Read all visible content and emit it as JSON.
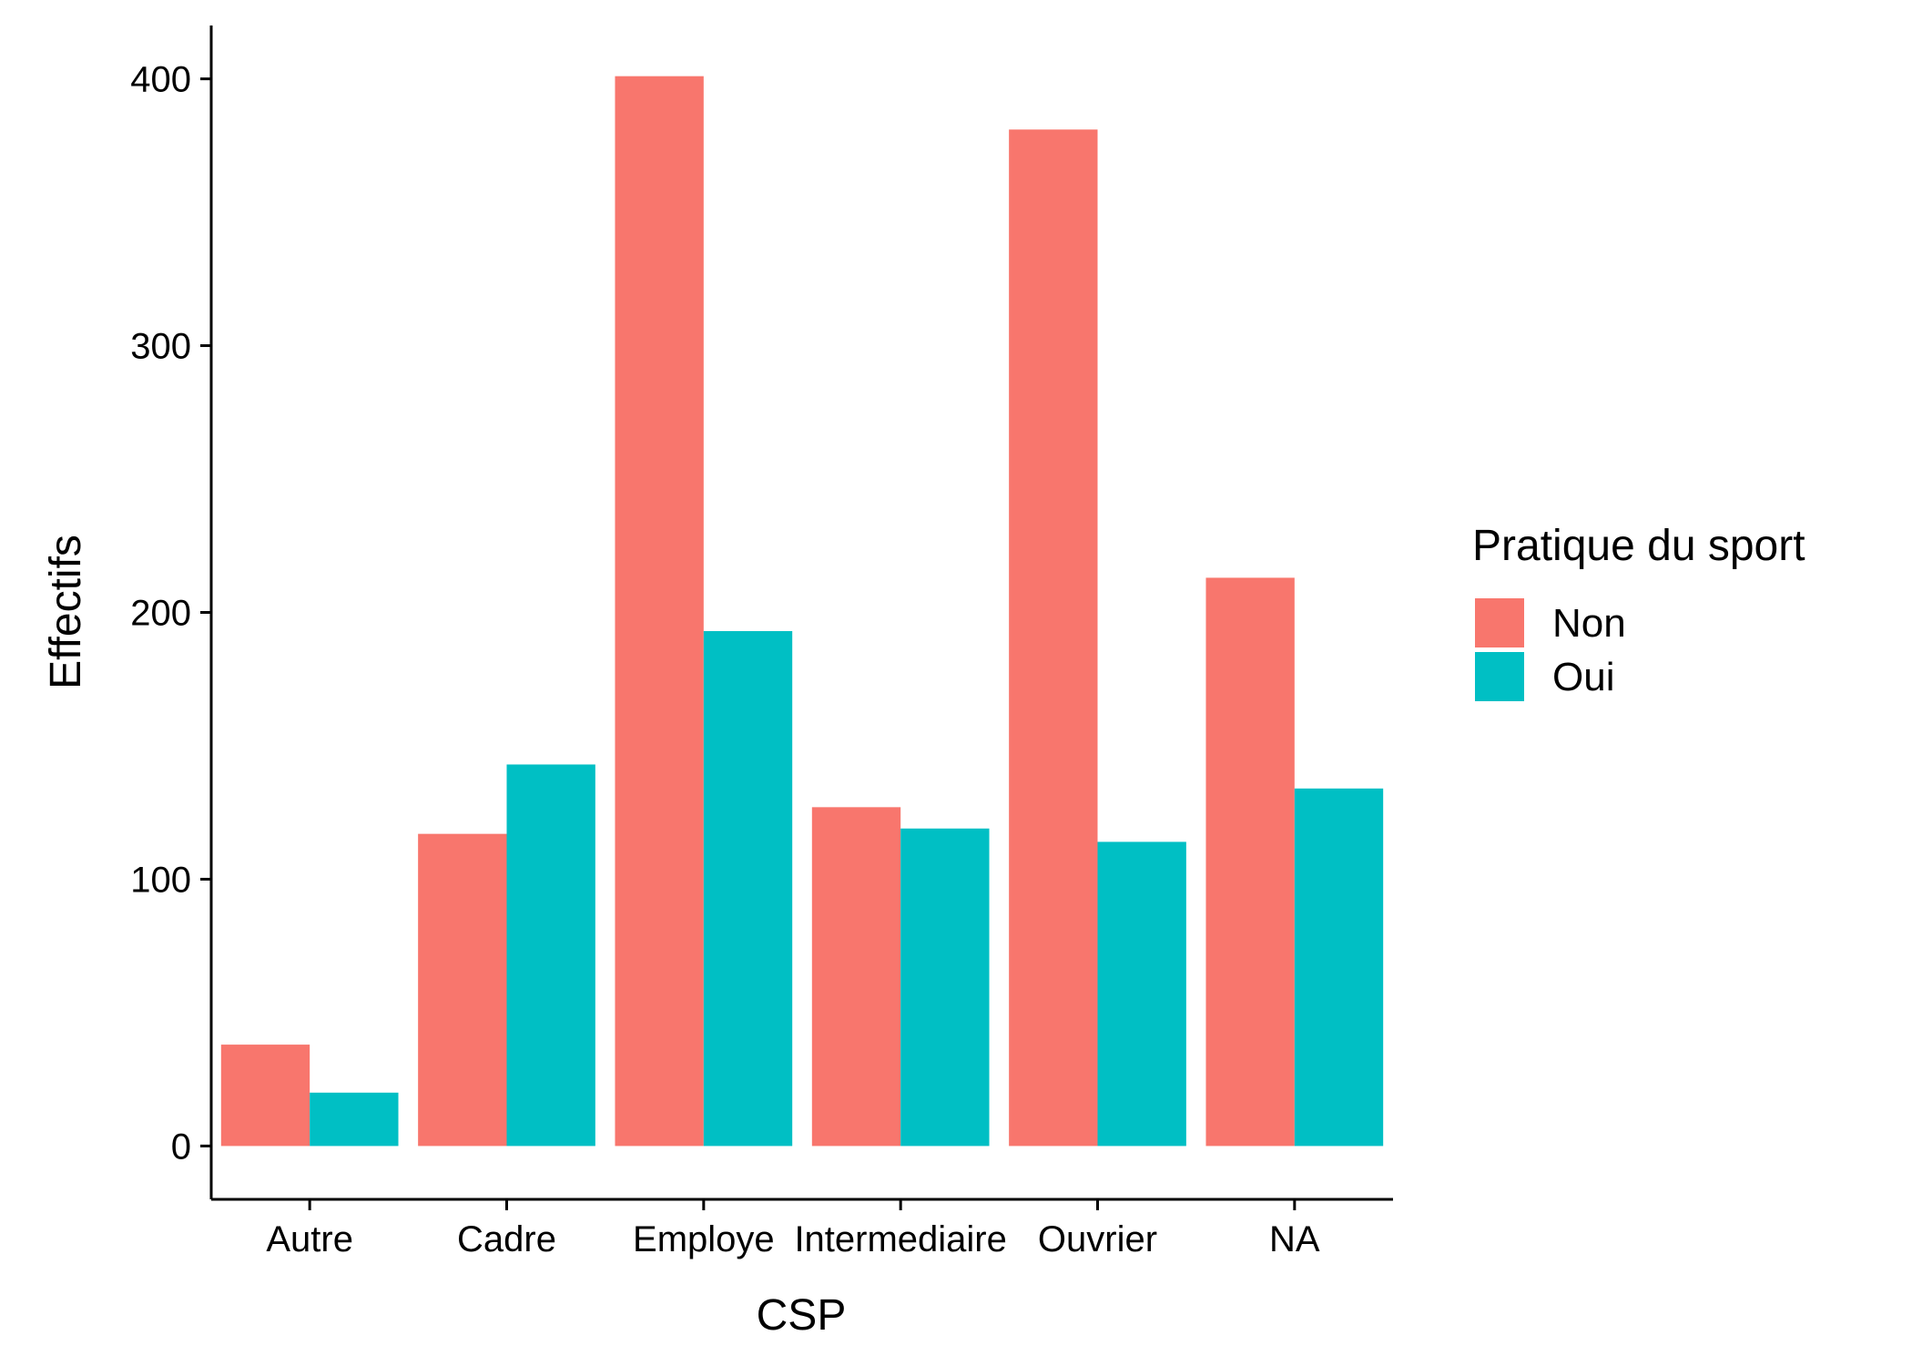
{
  "chart_data": {
    "type": "bar",
    "xlabel": "CSP",
    "ylabel": "Effectifs",
    "ylim": [
      -20,
      420
    ],
    "yticks": [
      0,
      100,
      200,
      300,
      400
    ],
    "categories": [
      "Autre",
      "Cadre",
      "Employe",
      "Intermediaire",
      "Ouvrier",
      "NA"
    ],
    "legend": {
      "title": "Pratique du sport",
      "position": "right"
    },
    "series": [
      {
        "name": "Non",
        "color": "#F8766D",
        "values": [
          38,
          117,
          401,
          127,
          381,
          213
        ]
      },
      {
        "name": "Oui",
        "color": "#00BFC4",
        "values": [
          20,
          143,
          193,
          119,
          114,
          134
        ]
      }
    ]
  }
}
